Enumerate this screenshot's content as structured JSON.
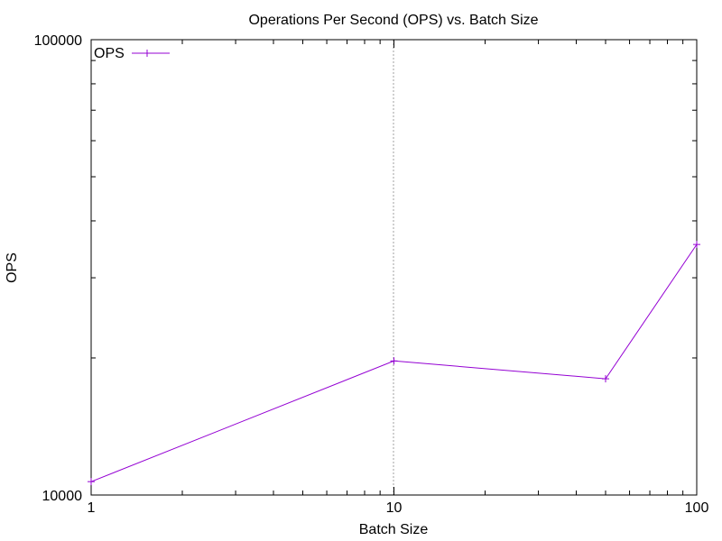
{
  "chart_data": {
    "type": "line",
    "title": "Operations Per Second (OPS) vs. Batch Size",
    "xlabel": "Batch Size",
    "ylabel": "OPS",
    "xscale": "log",
    "yscale": "log",
    "xlim": [
      1,
      100
    ],
    "ylim": [
      10000,
      100000
    ],
    "xticks": [
      {
        "value": 1,
        "label": "1"
      },
      {
        "value": 10,
        "label": "10"
      },
      {
        "value": 100,
        "label": "100"
      }
    ],
    "yticks": [
      {
        "value": 10000,
        "label": "10000"
      },
      {
        "value": 100000,
        "label": "100000"
      }
    ],
    "grid": "vertical line at x = 10",
    "legend": "top-left",
    "series": [
      {
        "name": "OPS",
        "color": "#9400d3",
        "marker": "plus",
        "x": [
          1,
          10,
          50,
          100
        ],
        "y": [
          10700,
          19700,
          18000,
          35500
        ]
      }
    ]
  }
}
